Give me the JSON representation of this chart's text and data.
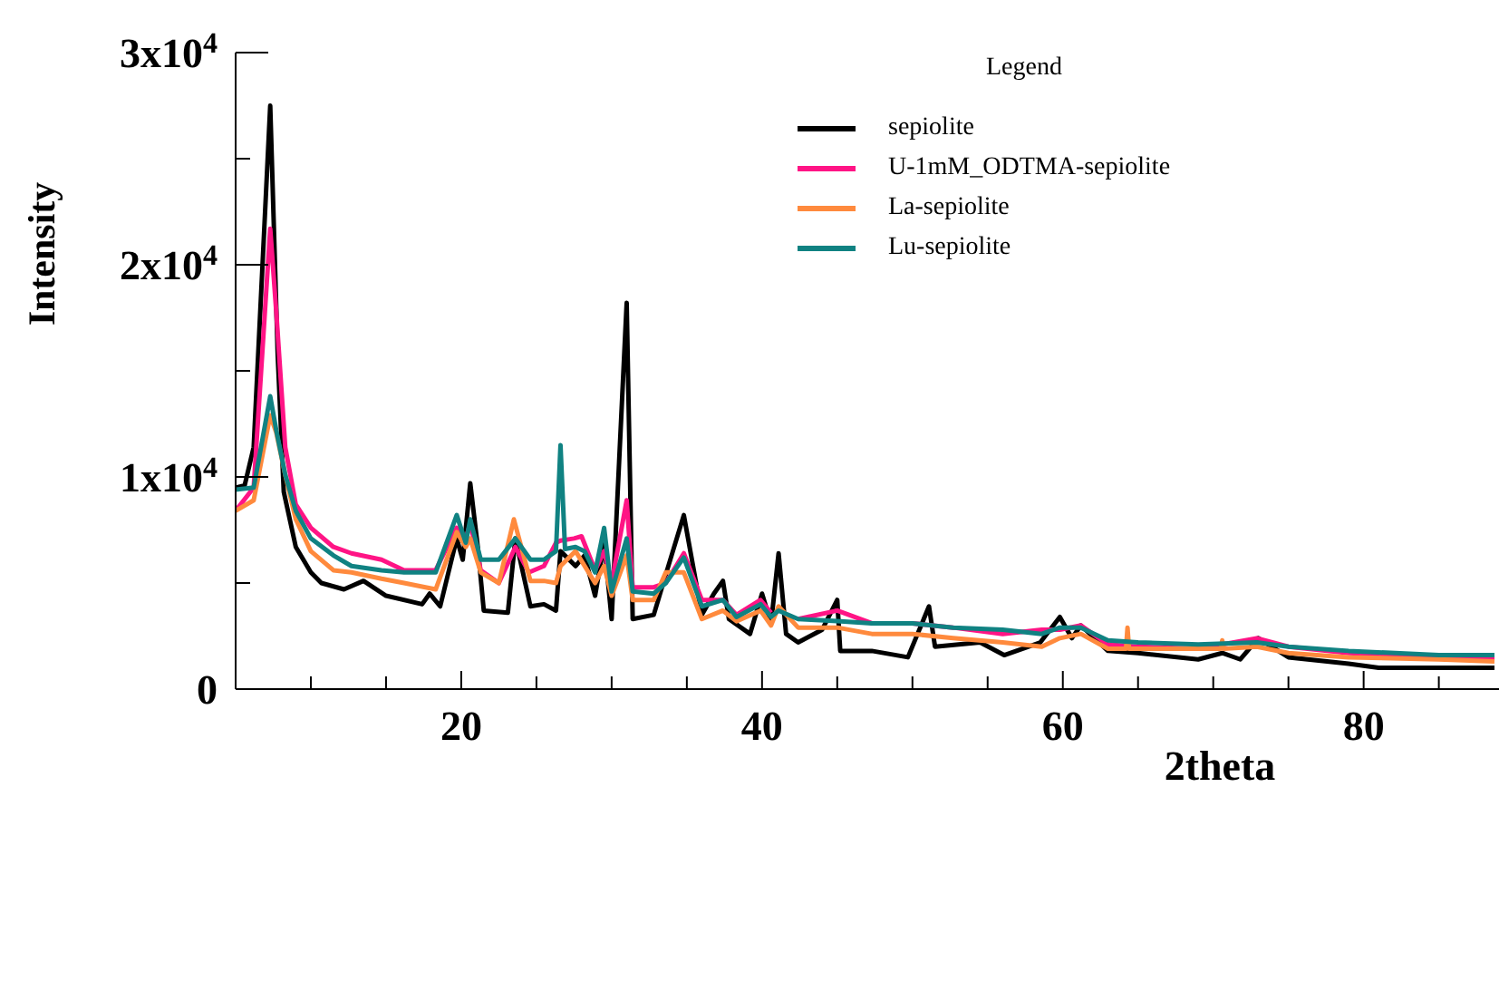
{
  "chart_data": {
    "type": "line",
    "xlabel": "2theta",
    "ylabel": "Intensity",
    "legend_title": "Legend",
    "legend": "top right",
    "xlim": [
      5,
      89
    ],
    "ylim": [
      0,
      30000
    ],
    "xticks": [
      {
        "value": 10,
        "label": null
      },
      {
        "value": 15,
        "label": null
      },
      20,
      {
        "value": 25,
        "label": null
      },
      {
        "value": 30,
        "label": null
      },
      {
        "value": 35,
        "label": null
      },
      40,
      {
        "value": 45,
        "label": null
      },
      {
        "value": 50,
        "label": null
      },
      {
        "value": 55,
        "label": null
      },
      60,
      {
        "value": 65,
        "label": null
      },
      {
        "value": 70,
        "label": null
      },
      {
        "value": 75,
        "label": null
      },
      80,
      {
        "value": 85,
        "label": null
      }
    ],
    "yticks": [
      0,
      {
        "value": 5000,
        "label": null
      },
      {
        "value": 10000,
        "label": "1x10$^{4}$"
      },
      {
        "value": 15000,
        "label": null
      },
      {
        "value": 20000,
        "label": "2x10$^{4}$"
      },
      {
        "value": 25000,
        "label": null
      },
      {
        "value": 30000,
        "label": "3x10$^{4}$"
      }
    ],
    "series": [
      {
        "name": "sepiolite",
        "color": "#000000",
        "x": [
          5,
          5.6,
          6.2,
          7.3,
          7.8,
          8.2,
          9,
          10,
          10.7,
          12.2,
          13.5,
          15,
          17.4,
          17.9,
          18.6,
          19.7,
          20.1,
          20.6,
          21.1,
          21.5,
          23.1,
          23.6,
          24.6,
          25.5,
          26.3,
          26.6,
          27.6,
          28.2,
          28.9,
          29.5,
          30,
          31,
          31.4,
          32.8,
          33.6,
          34.8,
          36,
          36.8,
          37.4,
          37.8,
          39.2,
          40,
          40.6,
          41.1,
          41.6,
          42.4,
          44,
          45,
          45.2,
          47.3,
          49.7,
          51.1,
          51.5,
          54.5,
          56.1,
          58.5,
          59.8,
          60.6,
          61.2,
          63,
          65,
          69,
          70.6,
          71.8,
          73,
          75,
          79,
          81,
          85,
          88.7
        ],
        "values": [
          9500,
          9600,
          11400,
          27500,
          15700,
          9300,
          6700,
          5500,
          5000,
          4700,
          5100,
          4400,
          4000,
          4500,
          3900,
          7100,
          6100,
          9700,
          6700,
          3700,
          3600,
          7100,
          3900,
          4000,
          3700,
          6500,
          5800,
          6300,
          4400,
          6900,
          3300,
          18200,
          3300,
          3500,
          5400,
          8200,
          3500,
          4500,
          5100,
          3300,
          2600,
          4500,
          3100,
          6400,
          2600,
          2200,
          2800,
          4200,
          1800,
          1800,
          1500,
          3900,
          2000,
          2200,
          1600,
          2200,
          3400,
          2400,
          3000,
          1800,
          1700,
          1400,
          1700,
          1400,
          2400,
          1500,
          1200,
          1000,
          1000,
          1000
        ]
      },
      {
        "name": "U-1mM_ODTMA-sepiolite",
        "color": "#ff1485",
        "x": [
          5,
          6.2,
          7.3,
          7.7,
          8.3,
          9,
          10,
          11.5,
          12.7,
          14.7,
          16.2,
          18.3,
          19.7,
          20.3,
          20.6,
          21.3,
          22.5,
          23.6,
          24.5,
          25.5,
          26.3,
          26.6,
          27.5,
          28,
          28.9,
          29.5,
          30,
          31,
          31.4,
          32.8,
          33.6,
          34.8,
          36,
          37.4,
          38.3,
          39.9,
          40.6,
          41.1,
          42.4,
          45,
          47.3,
          50,
          52.7,
          56,
          58.6,
          59.8,
          61.2,
          63,
          65,
          69,
          72.9,
          75,
          79,
          85,
          88.7
        ],
        "values": [
          8400,
          9500,
          21700,
          17800,
          11400,
          8700,
          7600,
          6700,
          6400,
          6100,
          5600,
          5600,
          7600,
          7100,
          7800,
          5600,
          5000,
          6700,
          5500,
          5800,
          6900,
          7000,
          7100,
          7200,
          5600,
          6500,
          5000,
          8900,
          4800,
          4800,
          5000,
          6400,
          4200,
          4200,
          3500,
          4200,
          3600,
          null,
          3300,
          3700,
          3100,
          3100,
          2900,
          2600,
          2800,
          2800,
          3000,
          2100,
          2000,
          1900,
          2400,
          2000,
          1700,
          1500,
          1500
        ]
      },
      {
        "name": "La-sepiolite",
        "color": "#ff8a3d",
        "x": [
          5,
          6.2,
          7.3,
          7.7,
          8.3,
          9,
          10,
          11.5,
          12.7,
          14.7,
          16.2,
          18.3,
          19.7,
          20.3,
          20.6,
          21.3,
          22.5,
          23.5,
          24.6,
          25.5,
          26.3,
          26.6,
          27.6,
          28.9,
          29.5,
          30,
          31,
          31.4,
          32.8,
          33.6,
          34.8,
          36,
          37.4,
          38.3,
          39.9,
          40.6,
          41.1,
          42.4,
          45,
          47.3,
          50,
          52.7,
          56,
          58.6,
          59.8,
          61.2,
          63,
          64.2,
          64.3,
          64.4,
          65,
          69,
          70.5,
          70.6,
          70.7,
          72.9,
          75,
          79,
          85,
          88.7
        ],
        "values": [
          8400,
          8900,
          12900,
          12100,
          10100,
          8000,
          6500,
          5600,
          5500,
          5200,
          5000,
          4700,
          7400,
          6700,
          7100,
          5500,
          5000,
          8000,
          5100,
          5100,
          5000,
          5800,
          6500,
          5000,
          5800,
          4400,
          6300,
          4200,
          4200,
          5500,
          5500,
          3300,
          3700,
          3200,
          3700,
          3000,
          3900,
          2900,
          2900,
          2600,
          2600,
          2400,
          2200,
          2000,
          2400,
          2600,
          1900,
          1900,
          2900,
          1900,
          1900,
          1900,
          1900,
          2300,
          1900,
          2000,
          1700,
          1500,
          1400,
          1300
        ]
      },
      {
        "name": "Lu-sepiolite",
        "color": "#108282",
        "x": [
          5,
          6.2,
          7.3,
          7.7,
          8.3,
          9,
          10,
          11.5,
          12.7,
          14.7,
          16.2,
          18.3,
          19.7,
          20.3,
          20.6,
          21.3,
          22.5,
          23.6,
          24.6,
          25.5,
          26.3,
          26.6,
          26.9,
          27.6,
          28.2,
          28.9,
          29.5,
          30,
          31,
          31.4,
          32.8,
          33.6,
          34.8,
          36,
          37.4,
          38.3,
          39.9,
          40.6,
          41.1,
          42.4,
          45,
          47.3,
          50,
          52.7,
          56,
          58.6,
          59.8,
          61.2,
          63,
          65,
          69,
          72.9,
          75,
          79,
          85,
          88.7
        ],
        "values": [
          9400,
          9500,
          13800,
          12200,
          10100,
          8400,
          7100,
          6300,
          5800,
          5600,
          5500,
          5500,
          8200,
          6900,
          8000,
          6100,
          6100,
          7100,
          6100,
          6100,
          6500,
          11500,
          6600,
          6700,
          6500,
          5500,
          7600,
          4600,
          7100,
          4600,
          4500,
          5000,
          6200,
          3900,
          4200,
          3400,
          4000,
          3400,
          3700,
          3300,
          3200,
          3100,
          3100,
          2900,
          2800,
          2600,
          2900,
          2900,
          2300,
          2200,
          2100,
          2200,
          2000,
          1800,
          1600,
          1600
        ]
      }
    ]
  }
}
